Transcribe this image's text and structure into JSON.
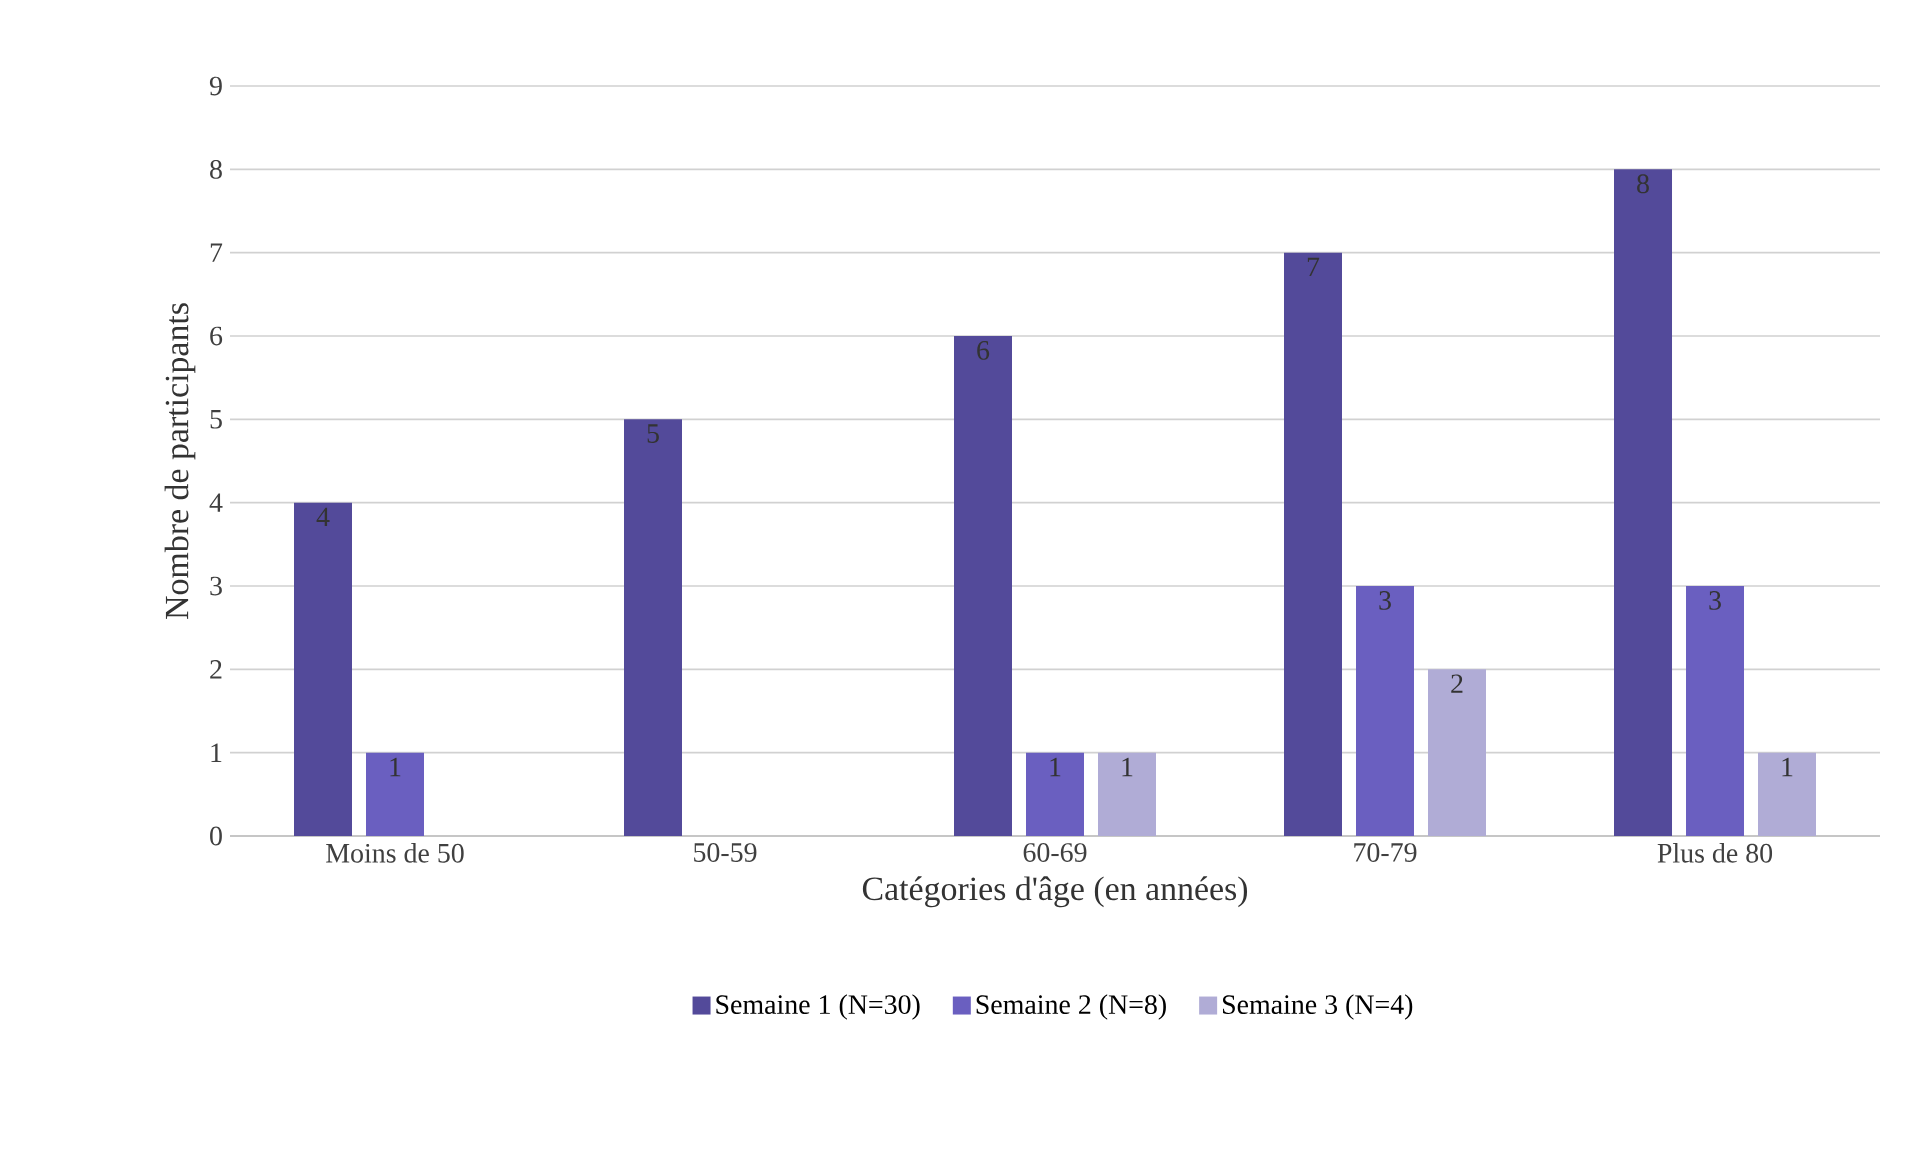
{
  "chart_data": {
    "type": "bar",
    "xlabel": "Catégories d'âge (en années)",
    "ylabel": "Nombre de participants",
    "categories": [
      "Moins de 50",
      "50-59",
      "60-69",
      "70-79",
      "Plus de 80"
    ],
    "series": [
      {
        "name": "Semaine 1 (N=30)",
        "color": "#534a9a",
        "values": [
          4,
          5,
          6,
          7,
          8
        ],
        "value_labels": [
          "4",
          "5",
          "6",
          "7",
          "8"
        ]
      },
      {
        "name": "Semaine 2 (N=8)",
        "color": "#6a5fc0",
        "values": [
          1,
          0,
          1,
          3,
          3
        ],
        "value_labels": [
          "1",
          null,
          "1",
          "3",
          "3"
        ]
      },
      {
        "name": "Semaine 3 (N=4)",
        "color": "#b0acd6",
        "values": [
          0,
          0,
          1,
          2,
          1
        ],
        "value_labels": [
          null,
          null,
          "1",
          "2",
          "1"
        ]
      }
    ],
    "ylim": [
      0,
      9
    ],
    "yticks": [
      0,
      1,
      2,
      3,
      4,
      5,
      6,
      7,
      8,
      9
    ],
    "grid": "y",
    "legend": "bottom"
  }
}
